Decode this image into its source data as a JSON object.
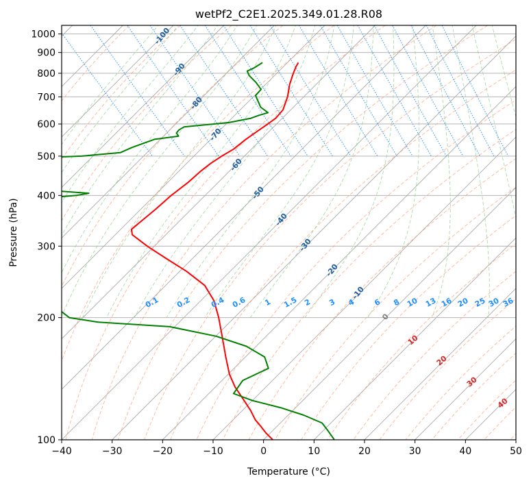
{
  "chart_data": {
    "type": "line",
    "title": "wetPf2_C2E1.2025.349.01.28.R08",
    "xlabel": "Temperature (°C)",
    "ylabel": "Pressure (hPa)",
    "xlim": [
      -40,
      50
    ],
    "ylim": [
      1050,
      100
    ],
    "y_scale": "log",
    "skew": 45,
    "grid": true,
    "x_ticks": [
      -40,
      -30,
      -20,
      -10,
      0,
      10,
      20,
      30,
      40,
      50
    ],
    "x_tick_labels": [
      "−40",
      "−30",
      "−20",
      "−10",
      "0",
      "10",
      "20",
      "30",
      "40",
      "50"
    ],
    "y_ticks": [
      1000,
      900,
      800,
      700,
      600,
      500,
      400,
      300,
      200,
      100
    ],
    "y_tick_labels": [
      "1000",
      "900",
      "800",
      "700",
      "600",
      "500",
      "400",
      "300",
      "200",
      "100"
    ],
    "series": [
      {
        "color": "#ff0000",
        "pressure": [
          850,
          830,
          800,
          750,
          700,
          650,
          620,
          600,
          580,
          550,
          520,
          500,
          480,
          460,
          430,
          400,
          370,
          345,
          330,
          320,
          300,
          280,
          260,
          240,
          220,
          200,
          180,
          160,
          145,
          135,
          125,
          118,
          112,
          108,
          104,
          100
        ],
        "temperature": [
          -0.5,
          -1.8,
          -3.6,
          -6.6,
          -9.4,
          -12.9,
          -16.0,
          -18.7,
          -21.6,
          -26.1,
          -30.5,
          -34.2,
          -37.8,
          -41.2,
          -46.2,
          -52.0,
          -57.8,
          -63.2,
          -66.6,
          -67.5,
          -66.8,
          -65.5,
          -64.0,
          -63.2,
          -64.4,
          -66.8,
          -69.8,
          -73.2,
          -75.9,
          -77.3,
          -78.2,
          -78.9,
          -79.8,
          -80.0,
          -80.3,
          -80.3
        ]
      },
      {
        "color": "#008000",
        "pressure": [
          850,
          825,
          810,
          790,
          760,
          730,
          705,
          680,
          660,
          640,
          630,
          620,
          605,
          590,
          580,
          570,
          560,
          550,
          540,
          525,
          510,
          500,
          495,
          490,
          470,
          440,
          420,
          410,
          405,
          400,
          395,
          390,
          375,
          350,
          320,
          300,
          290,
          280,
          260,
          240,
          220,
          200,
          195,
          190,
          180,
          170,
          160,
          150,
          140,
          130,
          125,
          120,
          115,
          110,
          105,
          100
        ],
        "temperature": [
          -7.6,
          -10.3,
          -12.3,
          -12.8,
          -12.8,
          -13.2,
          -15.5,
          -16.2,
          -16.8,
          -16.4,
          -18.8,
          -20.9,
          -26.1,
          -35.9,
          -37.5,
          -38.6,
          -38.8,
          -44.2,
          -46.6,
          -50.3,
          -53.6,
          -62.0,
          -72.0,
          -75.3,
          -77.9,
          -78.9,
          -77.6,
          -73.3,
          -67.9,
          -70.8,
          -76.5,
          -81.4,
          -84.7,
          -88.6,
          -92.8,
          -95.2,
          -94.7,
          -93.4,
          -95.5,
          -96.7,
          -97.4,
          -96.4,
          -91.6,
          -78.3,
          -71.0,
          -67.0,
          -65.5,
          -67.0,
          -74.5,
          -78.9,
          -76.6,
          -72.4,
          -69.3,
          -67.2,
          -67.6,
          -68.1
        ]
      }
    ],
    "isotherm_labels": [
      "-100",
      "-90",
      "-80",
      "-70",
      "-60",
      "-50",
      "-40",
      "-30",
      "-20",
      "-10"
    ],
    "isotherm_zero_label": "0",
    "mixing_ratio_labels": [
      "0.1",
      "0.2",
      "0.4",
      "0.6",
      "1",
      "1.5",
      "2",
      "3",
      "4",
      "6",
      "8",
      "10",
      "13",
      "16",
      "20",
      "25",
      "30",
      "36"
    ],
    "moist_adiabat_labels": [
      "10",
      "20",
      "30",
      "40"
    ]
  },
  "colors": {
    "temperature": "#ff0000",
    "dewpoint": "#008000",
    "dry_adiabat": "#ff9a70",
    "moist_adiabat": "#8fcc8f",
    "mixing_ratio": "#1e90ff",
    "isotherm_label": "#1f5fa0",
    "grid": "#a9a9a9"
  }
}
